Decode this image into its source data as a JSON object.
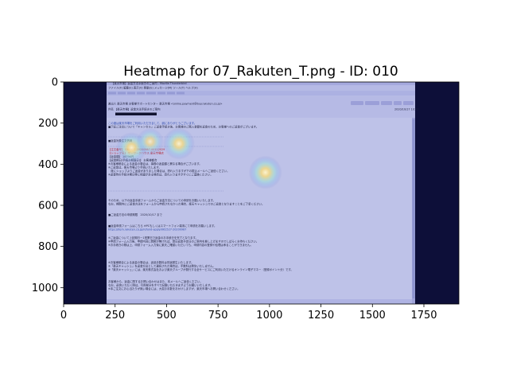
{
  "chart_data": {
    "type": "heatmap",
    "title": "Heatmap for 07_Rakuten_T.png - ID: 010",
    "xlim": [
      0,
      1920
    ],
    "ylim": [
      1080,
      0
    ],
    "x_ticks": [
      0,
      250,
      500,
      750,
      1000,
      1250,
      1500,
      1750
    ],
    "y_ticks": [
      0,
      200,
      400,
      600,
      800,
      1000
    ],
    "hotspots": [
      {
        "x": 980,
        "y": 440,
        "intensity": 1.0
      },
      {
        "x": 560,
        "y": 300,
        "intensity": 0.9
      },
      {
        "x": 330,
        "y": 320,
        "intensity": 0.85
      },
      {
        "x": 420,
        "y": 290,
        "intensity": 0.6
      }
    ],
    "colors": {
      "background": "#050523",
      "overlay": "#5a62c8",
      "hot": "#fff4c4",
      "warm": "#f2d27a",
      "cool": "#8fe0e0"
    }
  },
  "email": {
    "window_title": "【楽天市場】返金方法手続きのご案内 - Mozilla Thunderbird",
    "menu": "ファイル(F)  編集(E)  表示(V)  移動(G)  メッセージ(M)  ツール(T)  ヘルプ(H)",
    "from": "差出人  楽天市場 お客様サポートセンター 楽天市場 <online.payment@buy.rakuten.co.jp>",
    "subject": "件名  【楽天市場】返金方法手続きのご案内",
    "date": "2020/10/17 10:01",
    "lines": [
      "この度は楽天市場をご利用いただきまして、誠にありがとうございます。",
      "■下記ご注文について「キャンセル」ご返金手続き後、お客様のご購入金額を返金のため、お客様へのご返金がございます。",
      "■返金対象注文情報",
      "【注文番号】 061527-20200987-00112029",
      "【ショップ名】 ザ・ワークハウス 楽天市場店",
      "【返金額】 18796円",
      "【返金期日(手続き期限日)】 お客様都合",
      "※お客様都合による返金の場合は、事務の返金額と異なる場合がございます。",
      "※ご返金は、楽天市場より手続いたします。",
      "　既にショップよりご返金がありました場合は、恐れ入りますが下の振込メールへご返信ください。",
      "※返金時の手続き期日等に相違がある場合は、恐れ入りますがすぐにご連絡ください。",
      "そのため、以下の返金手続フォームからご返金方法についての申請をお願いいたします。",
      "なお、期間内にご返金方法をフォームから申請されなかった場合、楽天キャッシュでのご返金となりますことをご了承ください。",
      "■ご返金方法の申請期限　2020/10/17 まで",
      "■返金申請フォームはこちら ※PCもしくはスマートフォン端末にて申請をお願いします。",
      "https://item.rakuten.co.jp/refund-apply/061527-20200987",
      "※ご返金について上記期日ー1営業日で返金のお手続きを完了となります。",
      "※申請フォーム入力後、申請内容に問題が無ければ、翌日返金予定日のご案内を差し上げますのでしばらくお待ちください。",
      "※お手続きの際は上、申請フォーム入力後に楽天ご確認いただいても、申請内容の登録や処理は承ることができません。",
      "※お客様都合による返金の場合は、返品手数料は別途発生いたします。",
      "※「楽天キャッシュ」を返金方法として選択された場合は、手数料は発生いたしません。",
      "※「楽天キャッシュ」には、楽天株式会社および楽天グループが発行する全サービスにご利用いただけるオンライン電子マネー（登録ポイント分）です。",
      "お客様から、返金に関するお問い合わせはまた、本メールへご返信ください。",
      "なお、返信いただく際は、引用部分をすべて記載いただきますようお願いいたします。",
      "※本ご注文にお心当たりが無い場合には、大変お手数をおかけしますが、楽天市場へお問い合わせください。"
    ]
  }
}
